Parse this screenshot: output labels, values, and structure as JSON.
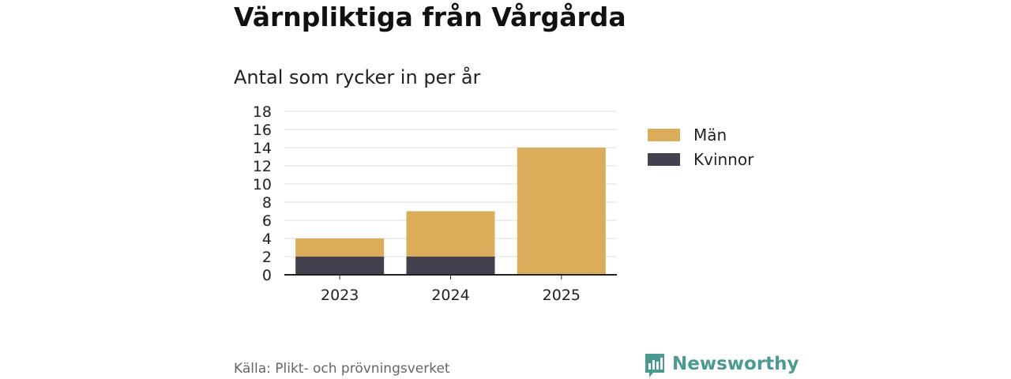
{
  "header": {
    "title": "Värnpliktiga från Vårgårda",
    "subtitle": "Antal som rycker in per år"
  },
  "footer": {
    "source": "Källa: Plikt- och prövningsverket",
    "brand_name": "Newsworthy",
    "brand_icon": "bar-chart-speech-icon",
    "brand_color": "#4a9a92"
  },
  "chart_data": {
    "type": "bar",
    "stacked": true,
    "categories": [
      "2023",
      "2024",
      "2025"
    ],
    "series": [
      {
        "name": "Kvinnor",
        "values": [
          2,
          2,
          0
        ],
        "color": "#44414f"
      },
      {
        "name": "Män",
        "values": [
          2,
          5,
          14
        ],
        "color": "#dbac5a"
      }
    ],
    "legend_order": [
      "Män",
      "Kvinnor"
    ],
    "title": "Antal som rycker in per år",
    "xlabel": "",
    "ylabel": "",
    "ylim": [
      0,
      18
    ],
    "yticks": [
      0,
      2,
      4,
      6,
      8,
      10,
      12,
      14,
      16,
      18
    ],
    "grid": true,
    "legend_position": "right"
  }
}
